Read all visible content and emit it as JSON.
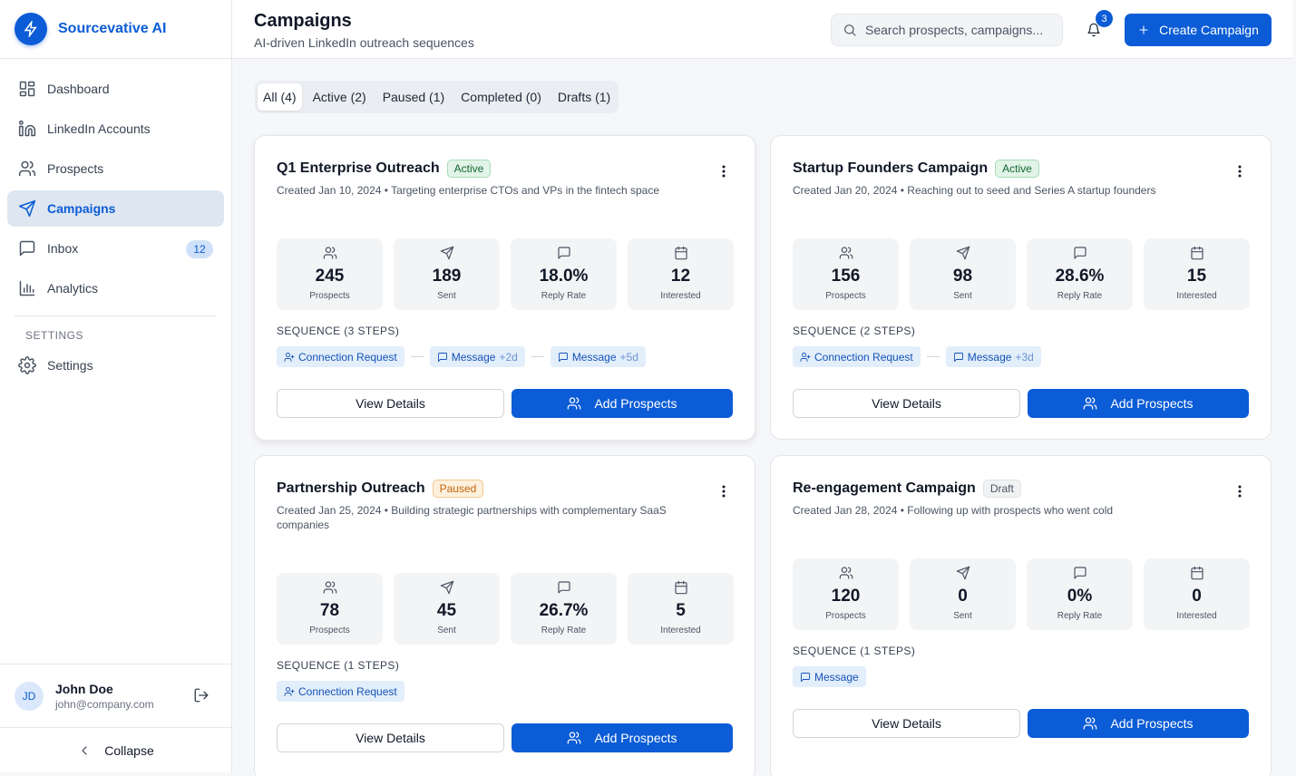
{
  "brand": {
    "name": "Sourcevative AI"
  },
  "nav": {
    "items": [
      {
        "label": "Dashboard"
      },
      {
        "label": "LinkedIn Accounts"
      },
      {
        "label": "Prospects"
      },
      {
        "label": "Campaigns"
      },
      {
        "label": "Inbox",
        "badge": "12"
      },
      {
        "label": "Analytics"
      }
    ],
    "section_label": "SETTINGS",
    "settings_label": "Settings"
  },
  "user": {
    "initials": "JD",
    "name": "John Doe",
    "email": "john@company.com"
  },
  "collapse_label": "Collapse",
  "header": {
    "title": "Campaigns",
    "subtitle": "AI-driven LinkedIn outreach sequences",
    "search_placeholder": "Search prospects, campaigns...",
    "notification_count": "3",
    "create_label": "Create Campaign"
  },
  "tabs": [
    {
      "label": "All (4)"
    },
    {
      "label": "Active (2)"
    },
    {
      "label": "Paused (1)"
    },
    {
      "label": "Completed (0)"
    },
    {
      "label": "Drafts (1)"
    }
  ],
  "labels": {
    "view_details": "View Details",
    "add_prospects": "Add Prospects"
  },
  "campaigns": [
    {
      "name": "Q1 Enterprise Outreach",
      "status": "Active",
      "description": "Created Jan 10, 2024 • Targeting enterprise CTOs and VPs in the fintech space",
      "stats": [
        {
          "value": "245",
          "label": "Prospects"
        },
        {
          "value": "189",
          "label": "Sent"
        },
        {
          "value": "18.0%",
          "label": "Reply Rate"
        },
        {
          "value": "12",
          "label": "Interested"
        }
      ],
      "sequence_label": "SEQUENCE (3 STEPS)",
      "steps": [
        {
          "label": "Connection Request",
          "delay": ""
        },
        {
          "label": "Message",
          "delay": "+2d"
        },
        {
          "label": "Message",
          "delay": "+5d"
        }
      ]
    },
    {
      "name": "Startup Founders Campaign",
      "status": "Active",
      "description": "Created Jan 20, 2024 • Reaching out to seed and Series A startup founders",
      "stats": [
        {
          "value": "156",
          "label": "Prospects"
        },
        {
          "value": "98",
          "label": "Sent"
        },
        {
          "value": "28.6%",
          "label": "Reply Rate"
        },
        {
          "value": "15",
          "label": "Interested"
        }
      ],
      "sequence_label": "SEQUENCE (2 STEPS)",
      "steps": [
        {
          "label": "Connection Request",
          "delay": ""
        },
        {
          "label": "Message",
          "delay": "+3d"
        }
      ]
    },
    {
      "name": "Partnership Outreach",
      "status": "Paused",
      "description": "Created Jan 25, 2024 • Building strategic partnerships with complementary SaaS companies",
      "stats": [
        {
          "value": "78",
          "label": "Prospects"
        },
        {
          "value": "45",
          "label": "Sent"
        },
        {
          "value": "26.7%",
          "label": "Reply Rate"
        },
        {
          "value": "5",
          "label": "Interested"
        }
      ],
      "sequence_label": "SEQUENCE (1 STEPS)",
      "steps": [
        {
          "label": "Connection Request",
          "delay": ""
        }
      ]
    },
    {
      "name": "Re-engagement Campaign",
      "status": "Draft",
      "description": "Created Jan 28, 2024 • Following up with prospects who went cold",
      "stats": [
        {
          "value": "120",
          "label": "Prospects"
        },
        {
          "value": "0",
          "label": "Sent"
        },
        {
          "value": "0%",
          "label": "Reply Rate"
        },
        {
          "value": "0",
          "label": "Interested"
        }
      ],
      "sequence_label": "SEQUENCE (1 STEPS)",
      "steps": [
        {
          "label": "Message",
          "delay": ""
        }
      ]
    }
  ]
}
